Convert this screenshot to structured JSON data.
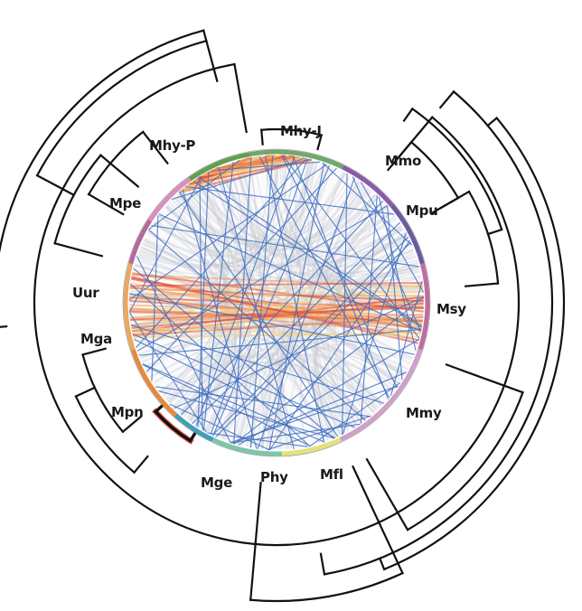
{
  "figure": {
    "labels": [
      "Mhy-J",
      "Mhy-P",
      "Mmo",
      "Mpe",
      "Mpu",
      "Uur",
      "Msy",
      "Mga",
      "Mmy",
      "Mpn",
      "Mfl",
      "Mge",
      "Phy"
    ]
  },
  "colors": {
    "background": "#ffffff",
    "tree_line": "#111111",
    "synteny_link": "#3f6fc1",
    "background_link": "#c9ccd2",
    "heat_dense": "#e8452a",
    "heat_mid": "#f39a5a",
    "heat_low": "#f6d387"
  }
}
